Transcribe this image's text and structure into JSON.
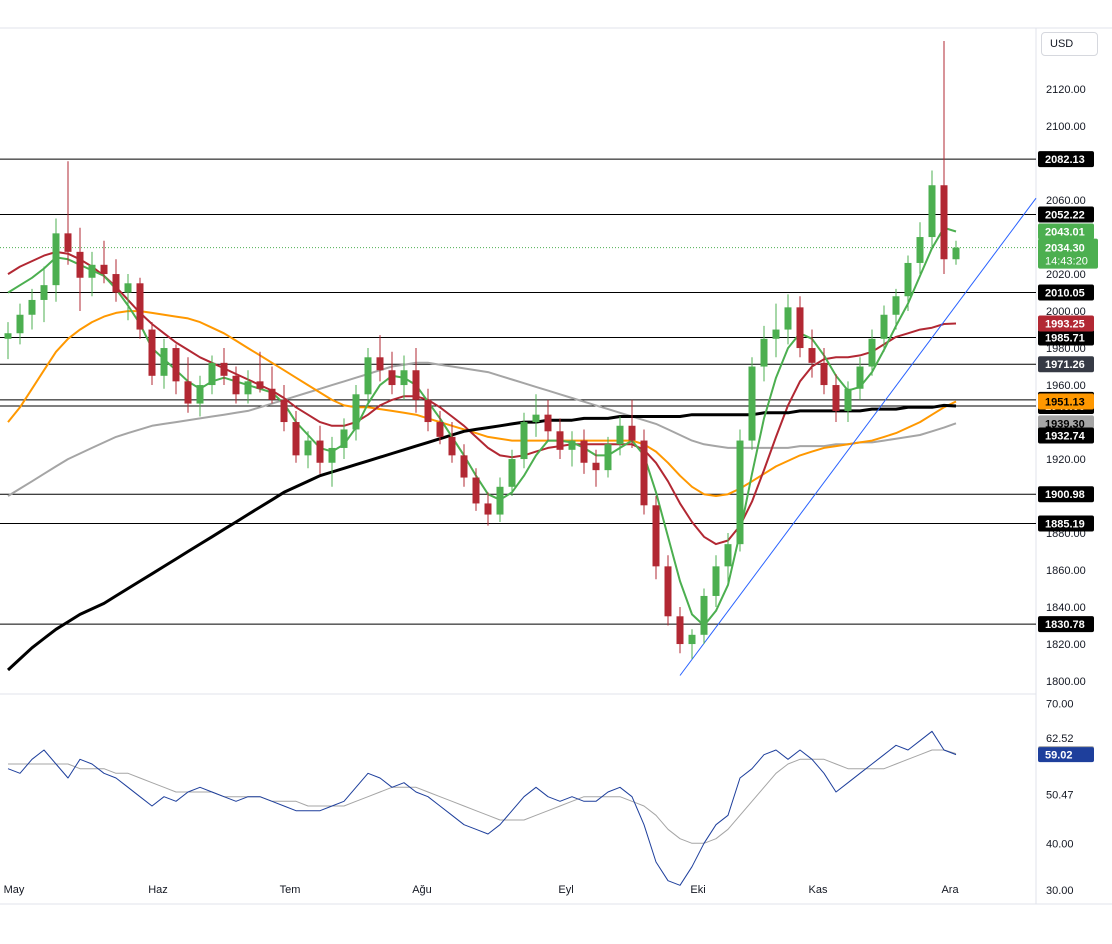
{
  "currency": "USD",
  "colors": {
    "up": "#4caf50",
    "down": "#b22833",
    "sma_fast": "#4caf50",
    "sma_red": "#b22833",
    "sma_orange": "#ff9800",
    "sma_gray": "#a5a5a5",
    "sma_black": "#000000",
    "trendline": "#2962ff",
    "rsi": "#1e3f9c",
    "rsi_ma": "#a5a5a5",
    "hline": "#000000",
    "price_dotted": "#4caf50"
  },
  "chart_data": [
    {
      "type": "candlestick",
      "title": "",
      "x_labels": [
        "May",
        "Haz",
        "Tem",
        "Ağu",
        "Eyl",
        "Eki",
        "Kas",
        "Ara"
      ],
      "y_ticks": [
        "1800.00",
        "1820.00",
        "1840.00",
        "1860.00",
        "1880.00",
        "1900.00",
        "1920.00",
        "1940.00",
        "1960.00",
        "1980.00",
        "2000.00",
        "2020.00",
        "2040.00",
        "2060.00",
        "2080.00",
        "2100.00",
        "2120.00"
      ],
      "ylim": [
        1793,
        2153
      ],
      "horizontal_levels": [
        {
          "value": 2082.13,
          "label": "2082.13",
          "bg": "#000000",
          "fg": "#ffffff"
        },
        {
          "value": 2052.22,
          "label": "2052.22",
          "bg": "#000000",
          "fg": "#ffffff"
        },
        {
          "value": 2010.05,
          "label": "2010.05",
          "bg": "#000000",
          "fg": "#ffffff"
        },
        {
          "value": 1985.71,
          "label": "1985.71",
          "bg": "#000000",
          "fg": "#ffffff"
        },
        {
          "value": 1971.26,
          "label": "1971.26",
          "bg": "#363a45",
          "fg": "#ffffff"
        },
        {
          "value": 1951.99,
          "label": "1951.99",
          "bg": "#000000",
          "fg": "#ffffff"
        },
        {
          "value": 1948.66,
          "label": "1948.66",
          "bg": "#000000",
          "fg": "#ffffff"
        },
        {
          "value": 1900.98,
          "label": "1900.98",
          "bg": "#000000",
          "fg": "#ffffff"
        },
        {
          "value": 1885.19,
          "label": "1885.19",
          "bg": "#000000",
          "fg": "#ffffff"
        },
        {
          "value": 1830.78,
          "label": "1830.78",
          "bg": "#000000",
          "fg": "#ffffff"
        }
      ],
      "indicator_labels": [
        {
          "value": 2043.01,
          "label": "2043.01",
          "bg": "#4caf50",
          "fg": "#ffffff"
        },
        {
          "value": 1993.25,
          "label": "1993.25",
          "bg": "#b22833",
          "fg": "#ffffff"
        },
        {
          "value": 1951.13,
          "label": "1951.13",
          "bg": "#ff9800",
          "fg": "#000000"
        },
        {
          "value": 1939.3,
          "label": "1939.30",
          "bg": "#a5a5a5",
          "fg": "#000000"
        },
        {
          "value": 1932.74,
          "label": "1932.74",
          "bg": "#000000",
          "fg": "#ffffff"
        }
      ],
      "last_price": {
        "value": 2034.3,
        "label": "2034.30",
        "countdown": "14:43:20",
        "bg": "#4caf50",
        "fg": "#ffffff"
      },
      "candles": [
        {
          "o": 1985,
          "h": 1994,
          "l": 1974,
          "c": 1988
        },
        {
          "o": 1988,
          "h": 2004,
          "l": 1982,
          "c": 1998
        },
        {
          "o": 1998,
          "h": 2012,
          "l": 1990,
          "c": 2006
        },
        {
          "o": 2006,
          "h": 2024,
          "l": 1994,
          "c": 2014
        },
        {
          "o": 2014,
          "h": 2050,
          "l": 2005,
          "c": 2042
        },
        {
          "o": 2042,
          "h": 2081,
          "l": 2025,
          "c": 2032
        },
        {
          "o": 2032,
          "h": 2045,
          "l": 2000,
          "c": 2018
        },
        {
          "o": 2018,
          "h": 2032,
          "l": 2008,
          "c": 2025
        },
        {
          "o": 2025,
          "h": 2038,
          "l": 2015,
          "c": 2020
        },
        {
          "o": 2020,
          "h": 2028,
          "l": 2005,
          "c": 2010
        },
        {
          "o": 2010,
          "h": 2020,
          "l": 1995,
          "c": 2015
        },
        {
          "o": 2015,
          "h": 2018,
          "l": 1985,
          "c": 1990
        },
        {
          "o": 1990,
          "h": 1994,
          "l": 1960,
          "c": 1965
        },
        {
          "o": 1965,
          "h": 1985,
          "l": 1958,
          "c": 1980
        },
        {
          "o": 1980,
          "h": 1982,
          "l": 1955,
          "c": 1962
        },
        {
          "o": 1962,
          "h": 1975,
          "l": 1945,
          "c": 1950
        },
        {
          "o": 1950,
          "h": 1965,
          "l": 1943,
          "c": 1960
        },
        {
          "o": 1960,
          "h": 1976,
          "l": 1955,
          "c": 1972
        },
        {
          "o": 1972,
          "h": 1980,
          "l": 1960,
          "c": 1965
        },
        {
          "o": 1965,
          "h": 1970,
          "l": 1950,
          "c": 1955
        },
        {
          "o": 1955,
          "h": 1968,
          "l": 1950,
          "c": 1962
        },
        {
          "o": 1962,
          "h": 1978,
          "l": 1956,
          "c": 1958
        },
        {
          "o": 1958,
          "h": 1970,
          "l": 1950,
          "c": 1952
        },
        {
          "o": 1952,
          "h": 1960,
          "l": 1935,
          "c": 1940
        },
        {
          "o": 1940,
          "h": 1946,
          "l": 1918,
          "c": 1922
        },
        {
          "o": 1922,
          "h": 1935,
          "l": 1915,
          "c": 1930
        },
        {
          "o": 1930,
          "h": 1938,
          "l": 1912,
          "c": 1918
        },
        {
          "o": 1918,
          "h": 1932,
          "l": 1905,
          "c": 1926
        },
        {
          "o": 1926,
          "h": 1942,
          "l": 1920,
          "c": 1936
        },
        {
          "o": 1936,
          "h": 1960,
          "l": 1930,
          "c": 1955
        },
        {
          "o": 1955,
          "h": 1980,
          "l": 1950,
          "c": 1975
        },
        {
          "o": 1975,
          "h": 1987,
          "l": 1962,
          "c": 1968
        },
        {
          "o": 1968,
          "h": 1978,
          "l": 1955,
          "c": 1960
        },
        {
          "o": 1960,
          "h": 1976,
          "l": 1952,
          "c": 1968
        },
        {
          "o": 1968,
          "h": 1980,
          "l": 1945,
          "c": 1952
        },
        {
          "o": 1952,
          "h": 1958,
          "l": 1935,
          "c": 1940
        },
        {
          "o": 1940,
          "h": 1946,
          "l": 1928,
          "c": 1932
        },
        {
          "o": 1932,
          "h": 1940,
          "l": 1918,
          "c": 1922
        },
        {
          "o": 1922,
          "h": 1928,
          "l": 1905,
          "c": 1910
        },
        {
          "o": 1910,
          "h": 1915,
          "l": 1892,
          "c": 1896
        },
        {
          "o": 1896,
          "h": 1902,
          "l": 1884,
          "c": 1890
        },
        {
          "o": 1890,
          "h": 1910,
          "l": 1886,
          "c": 1905
        },
        {
          "o": 1905,
          "h": 1925,
          "l": 1900,
          "c": 1920
        },
        {
          "o": 1920,
          "h": 1945,
          "l": 1915,
          "c": 1940
        },
        {
          "o": 1940,
          "h": 1955,
          "l": 1932,
          "c": 1944
        },
        {
          "o": 1944,
          "h": 1952,
          "l": 1930,
          "c": 1935
        },
        {
          "o": 1935,
          "h": 1942,
          "l": 1920,
          "c": 1925
        },
        {
          "o": 1925,
          "h": 1935,
          "l": 1916,
          "c": 1930
        },
        {
          "o": 1930,
          "h": 1936,
          "l": 1912,
          "c": 1918
        },
        {
          "o": 1918,
          "h": 1925,
          "l": 1905,
          "c": 1914
        },
        {
          "o": 1914,
          "h": 1932,
          "l": 1910,
          "c": 1928
        },
        {
          "o": 1928,
          "h": 1943,
          "l": 1922,
          "c": 1938
        },
        {
          "o": 1938,
          "h": 1952,
          "l": 1926,
          "c": 1930
        },
        {
          "o": 1930,
          "h": 1936,
          "l": 1890,
          "c": 1895
        },
        {
          "o": 1895,
          "h": 1900,
          "l": 1855,
          "c": 1862
        },
        {
          "o": 1862,
          "h": 1868,
          "l": 1830,
          "c": 1835
        },
        {
          "o": 1835,
          "h": 1840,
          "l": 1815,
          "c": 1820
        },
        {
          "o": 1820,
          "h": 1828,
          "l": 1812,
          "c": 1825
        },
        {
          "o": 1825,
          "h": 1850,
          "l": 1820,
          "c": 1846
        },
        {
          "o": 1846,
          "h": 1868,
          "l": 1840,
          "c": 1862
        },
        {
          "o": 1862,
          "h": 1880,
          "l": 1852,
          "c": 1874
        },
        {
          "o": 1874,
          "h": 1936,
          "l": 1870,
          "c": 1930
        },
        {
          "o": 1930,
          "h": 1975,
          "l": 1925,
          "c": 1970
        },
        {
          "o": 1970,
          "h": 1992,
          "l": 1962,
          "c": 1985
        },
        {
          "o": 1985,
          "h": 2004,
          "l": 1975,
          "c": 1990
        },
        {
          "o": 1990,
          "h": 2009,
          "l": 1982,
          "c": 2002
        },
        {
          "o": 2002,
          "h": 2008,
          "l": 1975,
          "c": 1980
        },
        {
          "o": 1980,
          "h": 1990,
          "l": 1964,
          "c": 1972
        },
        {
          "o": 1972,
          "h": 1980,
          "l": 1955,
          "c": 1960
        },
        {
          "o": 1960,
          "h": 1966,
          "l": 1940,
          "c": 1946
        },
        {
          "o": 1946,
          "h": 1962,
          "l": 1940,
          "c": 1958
        },
        {
          "o": 1958,
          "h": 1975,
          "l": 1952,
          "c": 1970
        },
        {
          "o": 1970,
          "h": 1990,
          "l": 1965,
          "c": 1985
        },
        {
          "o": 1985,
          "h": 2003,
          "l": 1978,
          "c": 1998
        },
        {
          "o": 1998,
          "h": 2012,
          "l": 1990,
          "c": 2008
        },
        {
          "o": 2008,
          "h": 2030,
          "l": 2000,
          "c": 2026
        },
        {
          "o": 2026,
          "h": 2048,
          "l": 2020,
          "c": 2040
        },
        {
          "o": 2040,
          "h": 2076,
          "l": 2034,
          "c": 2068
        },
        {
          "o": 2068,
          "h": 2146,
          "l": 2020,
          "c": 2028
        },
        {
          "o": 2028,
          "h": 2038,
          "l": 2025,
          "c": 2034.3
        }
      ],
      "sma_fast": [
        2010,
        2014,
        2018,
        2023,
        2029,
        2028,
        2025,
        2022,
        2019,
        2012,
        2003,
        1993,
        1980,
        1974,
        1968,
        1962,
        1958,
        1962,
        1964,
        1962,
        1960,
        1958,
        1956,
        1950,
        1940,
        1933,
        1926,
        1924,
        1928,
        1937,
        1950,
        1960,
        1965,
        1964,
        1960,
        1951,
        1942,
        1932,
        1922,
        1911,
        1901,
        1898,
        1902,
        1911,
        1922,
        1930,
        1930,
        1929,
        1926,
        1922,
        1922,
        1926,
        1930,
        1922,
        1902,
        1878,
        1854,
        1836,
        1830,
        1838,
        1852,
        1880,
        1912,
        1942,
        1964,
        1980,
        1988,
        1985,
        1976,
        1965,
        1957,
        1959,
        1967,
        1979,
        1992,
        2004,
        2019,
        2034,
        2045,
        2043.01
      ],
      "sma_red": [
        2020,
        2024,
        2027,
        2030,
        2032,
        2031,
        2028,
        2024,
        2019,
        2013,
        2006,
        1999,
        1993,
        1988,
        1983,
        1979,
        1975,
        1972,
        1969,
        1966,
        1963,
        1960,
        1957,
        1953,
        1948,
        1944,
        1940,
        1938,
        1938,
        1940,
        1944,
        1949,
        1952,
        1954,
        1954,
        1952,
        1948,
        1943,
        1938,
        1932,
        1926,
        1922,
        1921,
        1922,
        1924,
        1926,
        1927,
        1928,
        1928,
        1928,
        1928,
        1928,
        1928,
        1925,
        1918,
        1908,
        1896,
        1886,
        1878,
        1874,
        1876,
        1884,
        1897,
        1914,
        1932,
        1949,
        1962,
        1970,
        1974,
        1975,
        1975,
        1976,
        1978,
        1982,
        1986,
        1988,
        1990,
        1991,
        1993,
        1993.25
      ],
      "sma_orange": [
        1940,
        1948,
        1958,
        1968,
        1978,
        1985,
        1990,
        1994,
        1997,
        1999,
        2000,
        2000,
        1999,
        1998,
        1997,
        1996,
        1994,
        1991,
        1988,
        1984,
        1980,
        1976,
        1972,
        1968,
        1964,
        1960,
        1956,
        1952,
        1949,
        1948,
        1948,
        1947,
        1946,
        1945,
        1944,
        1942,
        1940,
        1938,
        1936,
        1934,
        1932,
        1931,
        1930,
        1930,
        1930,
        1930,
        1930,
        1930,
        1930,
        1930,
        1930,
        1930,
        1930,
        1928,
        1924,
        1918,
        1911,
        1905,
        1901,
        1900,
        1901,
        1904,
        1908,
        1912,
        1916,
        1919,
        1922,
        1924,
        1926,
        1927,
        1928,
        1929,
        1930,
        1932,
        1934,
        1937,
        1940,
        1944,
        1948,
        1951.13
      ],
      "sma_gray": [
        1900,
        1904,
        1908,
        1912,
        1916,
        1920,
        1923,
        1926,
        1929,
        1932,
        1934,
        1936,
        1938,
        1939,
        1940,
        1941,
        1942,
        1943,
        1944,
        1945,
        1946,
        1948,
        1950,
        1952,
        1954,
        1956,
        1958,
        1960,
        1962,
        1964,
        1966,
        1968,
        1970,
        1971,
        1972,
        1972,
        1971,
        1970,
        1969,
        1968,
        1967,
        1965,
        1963,
        1961,
        1959,
        1957,
        1955,
        1953,
        1951,
        1949,
        1947,
        1945,
        1943,
        1941,
        1939,
        1936,
        1933,
        1930,
        1928,
        1927,
        1926,
        1926,
        1926,
        1926,
        1926,
        1926,
        1927,
        1927,
        1927,
        1928,
        1928,
        1929,
        1929,
        1930,
        1931,
        1932,
        1933,
        1935,
        1937,
        1939.3
      ],
      "sma_black": [
        1806,
        1812,
        1818,
        1823,
        1828,
        1832,
        1836,
        1839,
        1842,
        1846,
        1850,
        1854,
        1858,
        1862,
        1866,
        1870,
        1874,
        1878,
        1882,
        1886,
        1890,
        1894,
        1898,
        1902,
        1905,
        1908,
        1911,
        1913,
        1915,
        1917,
        1919,
        1921,
        1923,
        1925,
        1927,
        1929,
        1931,
        1933,
        1935,
        1936,
        1937,
        1938,
        1939,
        1940,
        1940,
        1941,
        1941,
        1941,
        1942,
        1942,
        1942,
        1943,
        1943,
        1943,
        1943,
        1943,
        1943,
        1944,
        1944,
        1944,
        1944,
        1944,
        1944,
        1945,
        1945,
        1945,
        1946,
        1946,
        1946,
        1946,
        1946,
        1946,
        1947,
        1947,
        1947,
        1948,
        1948,
        1948,
        1949,
        1948.66
      ]
    },
    {
      "type": "line",
      "title": "",
      "ylim": [
        27,
        72
      ],
      "y_ticks": [
        "30.00",
        "40.00",
        "50.47",
        "62.52",
        "70.00"
      ],
      "labels": [
        {
          "value": 59.23,
          "label": "59.23",
          "bg": "#a5a5a5",
          "fg": "#000000"
        },
        {
          "value": 59.02,
          "label": "59.02",
          "bg": "#1e3f9c",
          "fg": "#ffffff"
        }
      ],
      "rsi": [
        56,
        55,
        58,
        60,
        57,
        54,
        58,
        57,
        55,
        54,
        52,
        50,
        48,
        50,
        49,
        51,
        52,
        51,
        50,
        49,
        50,
        50,
        49,
        48,
        47,
        47,
        47,
        48,
        49,
        52,
        55,
        54,
        52,
        53,
        51,
        50,
        48,
        46,
        44,
        43,
        42,
        44,
        47,
        50,
        52,
        50,
        49,
        50,
        49,
        49,
        51,
        52,
        50,
        44,
        36,
        32,
        31,
        35,
        40,
        44,
        46,
        54,
        56,
        59,
        60,
        58,
        60,
        58,
        55,
        51,
        53,
        55,
        57,
        59,
        61,
        60,
        62,
        64,
        60,
        59.02
      ],
      "rsi_ma": [
        57,
        57,
        57,
        57,
        57,
        57,
        56,
        56,
        56,
        55,
        55,
        54,
        53,
        52,
        51,
        51,
        51,
        51,
        50,
        50,
        50,
        50,
        49,
        49,
        49,
        48,
        48,
        48,
        48,
        49,
        50,
        51,
        52,
        52,
        52,
        51,
        50,
        49,
        48,
        47,
        46,
        45,
        45,
        45,
        46,
        47,
        48,
        49,
        50,
        50,
        50,
        50,
        49,
        48,
        46,
        43,
        41,
        40,
        40,
        41,
        43,
        46,
        49,
        52,
        55,
        57,
        58,
        58,
        58,
        57,
        56,
        56,
        56,
        56,
        57,
        58,
        59,
        60,
        60,
        59.23
      ]
    }
  ]
}
